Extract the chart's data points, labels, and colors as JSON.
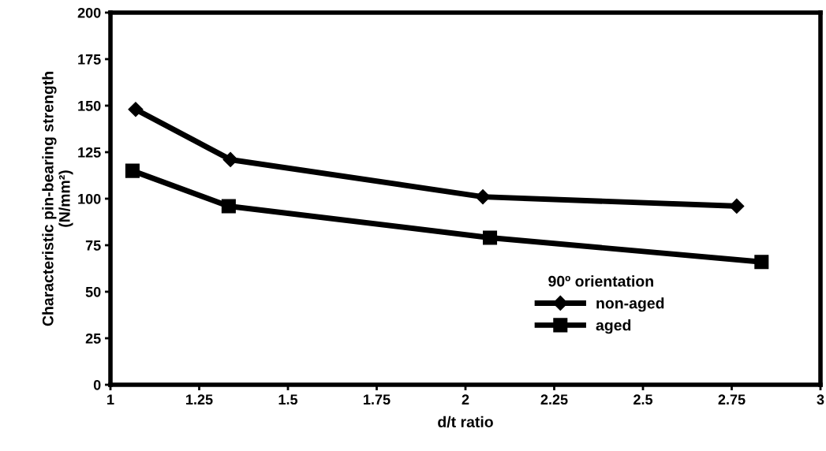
{
  "chart_data": {
    "type": "line",
    "xlabel": "d/t ratio",
    "ylabel": "Characteristic pin-bearing strength\n(N/mm²)",
    "legend_title": "90º orientation",
    "xlim": [
      1,
      3
    ],
    "xticks": [
      1,
      1.25,
      1.5,
      1.75,
      2,
      2.25,
      2.5,
      2.75,
      3
    ],
    "ylim": [
      0,
      200
    ],
    "yticks": [
      0,
      25,
      50,
      75,
      100,
      125,
      150,
      175,
      200
    ],
    "grid": false,
    "legend": "lower right",
    "line_style": "solid",
    "series": [
      {
        "name": "non-aged",
        "color": "#000000",
        "marker": "diamond",
        "x": [
          1.071,
          1.338,
          2.049,
          2.764
        ],
        "values": [
          148,
          121,
          101,
          96
        ]
      },
      {
        "name": "aged",
        "color": "#000000",
        "marker": "square",
        "x": [
          1.062,
          1.333,
          2.069,
          2.834
        ],
        "values": [
          115,
          96,
          79,
          66
        ]
      }
    ]
  }
}
